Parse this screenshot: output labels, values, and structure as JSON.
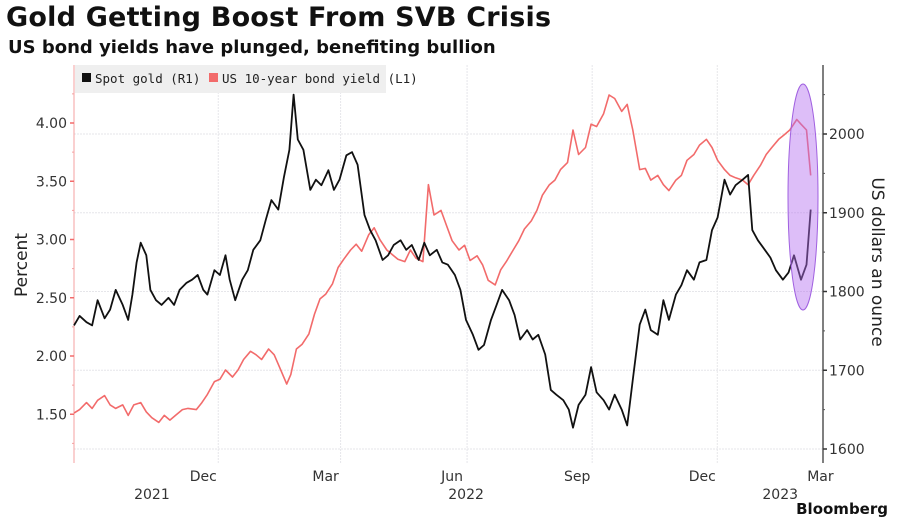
{
  "chart_data": {
    "type": "line",
    "title": "Gold Getting Boost From SVB Crisis",
    "subtitle": "US bond yields have plunged, benefiting bullion",
    "legend": [
      "Spot gold (R1)",
      "US 10-year bond yield (L1)"
    ],
    "legend_placement": "top-left",
    "grid": true,
    "left_axis": {
      "label": "Percent",
      "ticks": [
        "1.50",
        "2.00",
        "2.50",
        "3.00",
        "3.50",
        "4.00"
      ],
      "tick_values": [
        1.5,
        2.0,
        2.5,
        3.0,
        3.5,
        4.0
      ],
      "range": [
        1.17,
        4.5
      ]
    },
    "right_axis": {
      "label": "US dollars an ounce",
      "ticks": [
        "1600",
        "1700",
        "1800",
        "1900",
        "2000"
      ],
      "tick_values": [
        1600,
        1700,
        1800,
        1900,
        2000
      ],
      "range": [
        1580,
        2093
      ]
    },
    "x_axis": {
      "range_days": [
        0,
        535
      ],
      "month_ticks": [
        {
          "label": "Dec",
          "day": 93
        },
        {
          "label": "Mar",
          "day": 181
        },
        {
          "label": "Jun",
          "day": 272
        },
        {
          "label": "Sep",
          "day": 362
        },
        {
          "label": "Dec",
          "day": 452
        },
        {
          "label": "Mar",
          "day": 537
        }
      ],
      "gridline_days": [
        93,
        181,
        272,
        362,
        452
      ],
      "year_labels": [
        {
          "label": "2021",
          "day": 46
        },
        {
          "label": "2022",
          "day": 272
        },
        {
          "label": "2023",
          "day": 498
        }
      ]
    },
    "series": [
      {
        "name": "Spot gold (R1)",
        "axis": "right",
        "color": "#111111",
        "points": [
          [
            0,
            1757
          ],
          [
            4,
            1769
          ],
          [
            9,
            1761
          ],
          [
            13,
            1757
          ],
          [
            17,
            1789
          ],
          [
            22,
            1766
          ],
          [
            26,
            1777
          ],
          [
            30,
            1802
          ],
          [
            35,
            1783
          ],
          [
            39,
            1764
          ],
          [
            42,
            1796
          ],
          [
            45,
            1837
          ],
          [
            48,
            1862
          ],
          [
            52,
            1846
          ],
          [
            55,
            1802
          ],
          [
            59,
            1789
          ],
          [
            63,
            1783
          ],
          [
            68,
            1792
          ],
          [
            72,
            1783
          ],
          [
            76,
            1802
          ],
          [
            81,
            1811
          ],
          [
            85,
            1815
          ],
          [
            89,
            1821
          ],
          [
            93,
            1802
          ],
          [
            96,
            1796
          ],
          [
            101,
            1827
          ],
          [
            105,
            1821
          ],
          [
            109,
            1846
          ],
          [
            112,
            1815
          ],
          [
            116,
            1789
          ],
          [
            121,
            1815
          ],
          [
            125,
            1827
          ],
          [
            129,
            1853
          ],
          [
            134,
            1865
          ],
          [
            138,
            1891
          ],
          [
            142,
            1916
          ],
          [
            147,
            1904
          ],
          [
            151,
            1945
          ],
          [
            155,
            1980
          ],
          [
            158,
            2050
          ],
          [
            161,
            1993
          ],
          [
            165,
            1980
          ],
          [
            170,
            1929
          ],
          [
            174,
            1942
          ],
          [
            178,
            1935
          ],
          [
            183,
            1954
          ],
          [
            187,
            1929
          ],
          [
            191,
            1942
          ],
          [
            196,
            1973
          ],
          [
            200,
            1977
          ],
          [
            204,
            1961
          ],
          [
            209,
            1897
          ],
          [
            213,
            1878
          ],
          [
            217,
            1865
          ],
          [
            222,
            1840
          ],
          [
            226,
            1846
          ],
          [
            230,
            1859
          ],
          [
            235,
            1865
          ],
          [
            239,
            1853
          ],
          [
            243,
            1859
          ],
          [
            248,
            1840
          ],
          [
            252,
            1862
          ],
          [
            256,
            1846
          ],
          [
            261,
            1853
          ],
          [
            265,
            1837
          ],
          [
            269,
            1834
          ],
          [
            274,
            1821
          ],
          [
            278,
            1802
          ],
          [
            282,
            1764
          ],
          [
            287,
            1745
          ],
          [
            291,
            1726
          ],
          [
            295,
            1732
          ],
          [
            300,
            1764
          ],
          [
            304,
            1783
          ],
          [
            308,
            1802
          ],
          [
            313,
            1789
          ],
          [
            317,
            1770
          ],
          [
            321,
            1739
          ],
          [
            326,
            1751
          ],
          [
            330,
            1739
          ],
          [
            334,
            1745
          ],
          [
            339,
            1720
          ],
          [
            343,
            1675
          ],
          [
            347,
            1669
          ],
          [
            352,
            1662
          ],
          [
            356,
            1650
          ],
          [
            359,
            1627
          ],
          [
            363,
            1656
          ],
          [
            368,
            1669
          ],
          [
            372,
            1704
          ],
          [
            376,
            1672
          ],
          [
            381,
            1662
          ],
          [
            385,
            1650
          ],
          [
            389,
            1669
          ],
          [
            394,
            1650
          ],
          [
            398,
            1630
          ],
          [
            402,
            1688
          ],
          [
            407,
            1758
          ],
          [
            411,
            1777
          ],
          [
            415,
            1751
          ],
          [
            420,
            1745
          ],
          [
            424,
            1789
          ],
          [
            428,
            1764
          ],
          [
            433,
            1796
          ],
          [
            437,
            1808
          ],
          [
            441,
            1827
          ],
          [
            446,
            1815
          ],
          [
            450,
            1837
          ],
          [
            455,
            1840
          ],
          [
            459,
            1878
          ],
          [
            463,
            1894
          ],
          [
            468,
            1942
          ],
          [
            472,
            1923
          ],
          [
            476,
            1935
          ],
          [
            481,
            1942
          ],
          [
            485,
            1948
          ],
          [
            488,
            1878
          ],
          [
            492,
            1865
          ],
          [
            497,
            1853
          ],
          [
            501,
            1843
          ],
          [
            505,
            1827
          ],
          [
            510,
            1815
          ],
          [
            514,
            1824
          ],
          [
            518,
            1846
          ],
          [
            523,
            1815
          ],
          [
            527,
            1834
          ],
          [
            530,
            1904
          ]
        ]
      },
      {
        "name": "US 10-year bond yield (L1)",
        "axis": "left",
        "color": "#f26b6b",
        "points": [
          [
            0,
            1.51
          ],
          [
            4,
            1.54
          ],
          [
            9,
            1.6
          ],
          [
            13,
            1.55
          ],
          [
            17,
            1.62
          ],
          [
            22,
            1.66
          ],
          [
            26,
            1.58
          ],
          [
            30,
            1.55
          ],
          [
            35,
            1.58
          ],
          [
            39,
            1.49
          ],
          [
            43,
            1.58
          ],
          [
            48,
            1.6
          ],
          [
            52,
            1.52
          ],
          [
            56,
            1.47
          ],
          [
            61,
            1.43
          ],
          [
            65,
            1.49
          ],
          [
            69,
            1.45
          ],
          [
            73,
            1.49
          ],
          [
            78,
            1.54
          ],
          [
            82,
            1.55
          ],
          [
            88,
            1.54
          ],
          [
            92,
            1.6
          ],
          [
            96,
            1.67
          ],
          [
            101,
            1.78
          ],
          [
            105,
            1.8
          ],
          [
            109,
            1.88
          ],
          [
            114,
            1.82
          ],
          [
            118,
            1.88
          ],
          [
            122,
            1.97
          ],
          [
            127,
            2.04
          ],
          [
            131,
            2.01
          ],
          [
            135,
            1.97
          ],
          [
            140,
            2.06
          ],
          [
            144,
            2.01
          ],
          [
            148,
            1.9
          ],
          [
            153,
            1.76
          ],
          [
            156,
            1.84
          ],
          [
            160,
            2.06
          ],
          [
            164,
            2.1
          ],
          [
            169,
            2.19
          ],
          [
            173,
            2.36
          ],
          [
            177,
            2.49
          ],
          [
            181,
            2.53
          ],
          [
            186,
            2.62
          ],
          [
            190,
            2.76
          ],
          [
            194,
            2.83
          ],
          [
            199,
            2.91
          ],
          [
            203,
            2.96
          ],
          [
            207,
            2.9
          ],
          [
            212,
            3.04
          ],
          [
            216,
            3.1
          ],
          [
            220,
            3.0
          ],
          [
            225,
            2.91
          ],
          [
            229,
            2.87
          ],
          [
            233,
            2.83
          ],
          [
            238,
            2.81
          ],
          [
            242,
            2.91
          ],
          [
            246,
            2.84
          ],
          [
            251,
            2.81
          ],
          [
            255,
            3.47
          ],
          [
            259,
            3.21
          ],
          [
            264,
            3.25
          ],
          [
            268,
            3.12
          ],
          [
            272,
            2.99
          ],
          [
            277,
            2.91
          ],
          [
            281,
            2.95
          ],
          [
            285,
            2.82
          ],
          [
            290,
            2.86
          ],
          [
            294,
            2.78
          ],
          [
            298,
            2.65
          ],
          [
            303,
            2.61
          ],
          [
            307,
            2.74
          ],
          [
            311,
            2.81
          ],
          [
            316,
            2.91
          ],
          [
            320,
            2.99
          ],
          [
            324,
            3.09
          ],
          [
            329,
            3.16
          ],
          [
            333,
            3.25
          ],
          [
            337,
            3.38
          ],
          [
            342,
            3.47
          ],
          [
            346,
            3.51
          ],
          [
            350,
            3.6
          ],
          [
            355,
            3.66
          ],
          [
            359,
            3.94
          ],
          [
            363,
            3.73
          ],
          [
            368,
            3.79
          ],
          [
            372,
            3.99
          ],
          [
            376,
            3.97
          ],
          [
            381,
            4.08
          ],
          [
            385,
            4.24
          ],
          [
            389,
            4.21
          ],
          [
            394,
            4.1
          ],
          [
            398,
            4.16
          ],
          [
            402,
            3.94
          ],
          [
            407,
            3.6
          ],
          [
            411,
            3.61
          ],
          [
            415,
            3.51
          ],
          [
            420,
            3.55
          ],
          [
            424,
            3.47
          ],
          [
            428,
            3.42
          ],
          [
            433,
            3.51
          ],
          [
            437,
            3.55
          ],
          [
            441,
            3.68
          ],
          [
            446,
            3.73
          ],
          [
            450,
            3.81
          ],
          [
            455,
            3.86
          ],
          [
            459,
            3.79
          ],
          [
            463,
            3.68
          ],
          [
            468,
            3.6
          ],
          [
            472,
            3.55
          ],
          [
            476,
            3.53
          ],
          [
            481,
            3.51
          ],
          [
            485,
            3.47
          ],
          [
            489,
            3.55
          ],
          [
            494,
            3.64
          ],
          [
            498,
            3.73
          ],
          [
            502,
            3.79
          ],
          [
            507,
            3.86
          ],
          [
            511,
            3.9
          ],
          [
            515,
            3.94
          ],
          [
            520,
            4.03
          ],
          [
            523,
            3.99
          ],
          [
            527,
            3.94
          ],
          [
            530,
            3.55
          ]
        ]
      }
    ],
    "annotations": [
      {
        "type": "ellipse-highlight",
        "color": "#c890f0",
        "description": "SVB crisis period, March 2023"
      }
    ]
  },
  "source": "Bloomberg"
}
